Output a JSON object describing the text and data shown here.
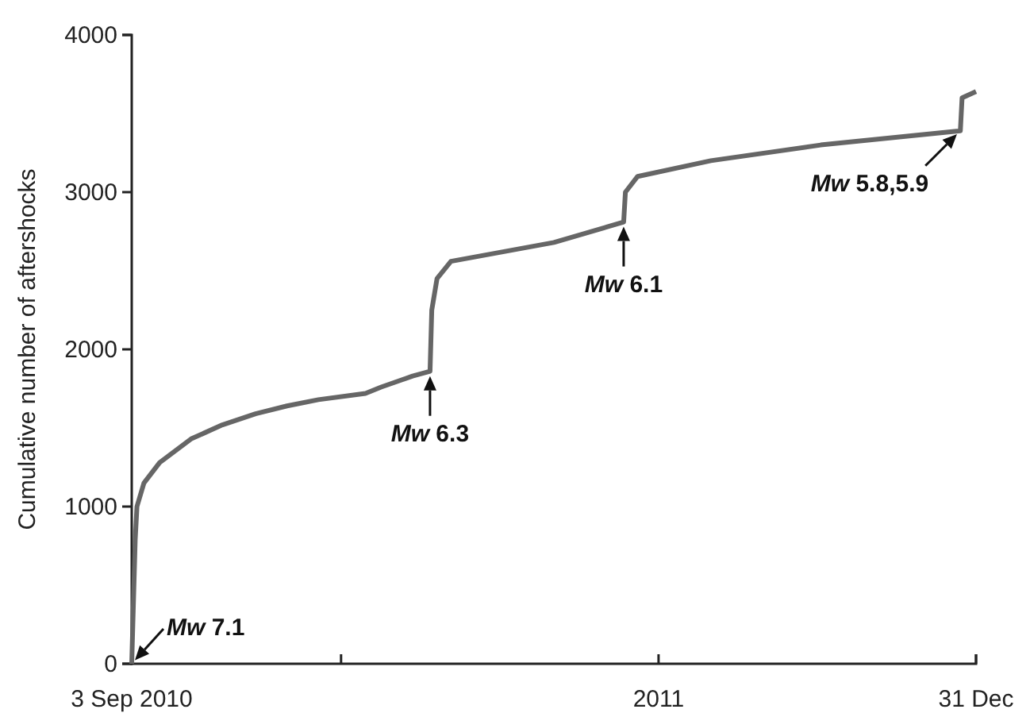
{
  "chart_data": {
    "type": "line",
    "ylabel": "Cumulative number of aftershocks",
    "x": [
      "2010-09-03",
      "2010-09-05",
      "2010-09-06",
      "2010-09-10",
      "2010-09-19",
      "2010-10-07",
      "2010-10-25",
      "2010-11-13",
      "2010-12-01",
      "2010-12-19",
      "2011-01-15",
      "2011-01-24",
      "2011-02-11",
      "2011-02-21",
      "2011-02-22",
      "2011-02-25",
      "2011-03-05",
      "2011-05-03",
      "2011-06-12",
      "2011-06-13",
      "2011-06-20",
      "2011-08-01",
      "2011-10-03",
      "2011-12-22",
      "2011-12-23",
      "2011-12-31"
    ],
    "series": [
      {
        "color": "#666666",
        "values": [
          0,
          790,
          1000,
          1150,
          1280,
          1430,
          1520,
          1590,
          1640,
          1680,
          1720,
          1760,
          1830,
          1860,
          2250,
          2450,
          2560,
          2680,
          2810,
          3000,
          3100,
          3200,
          3300,
          3390,
          3600,
          3640
        ]
      }
    ],
    "xlim": [
      "2010-09-03",
      "2011-12-31"
    ],
    "xticks": [
      {
        "value": "2010-09-03",
        "label": "3 Sep 2010"
      },
      {
        "value": "2011-01-01",
        "label": null
      },
      {
        "value": "2011-07-02",
        "label": "2011"
      },
      {
        "value": "2011-12-31",
        "label": "31 Dec"
      }
    ],
    "ylim": [
      0,
      4000
    ],
    "yticks": [
      0,
      1000,
      2000,
      3000,
      4000
    ],
    "grid": false,
    "marker": "none",
    "line_style": "solid",
    "annotations": [
      {
        "text": "Mw 7.1",
        "x": "2010-09-03",
        "y": 0
      },
      {
        "text": "Mw 6.3",
        "x": "2011-02-21",
        "y": 1860
      },
      {
        "text": "Mw 6.1",
        "x": "2011-06-12",
        "y": 2810
      },
      {
        "text": "Mw 5.8,5.9",
        "x": "2011-12-22",
        "y": 3390
      }
    ]
  }
}
